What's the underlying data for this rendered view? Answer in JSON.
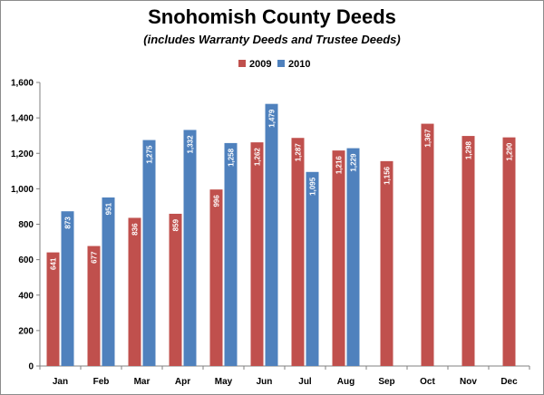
{
  "chart_data": {
    "type": "bar",
    "title": "Snohomish County Deeds",
    "subtitle": "(includes Warranty Deeds and Trustee Deeds)",
    "categories": [
      "Jan",
      "Feb",
      "Mar",
      "Apr",
      "May",
      "Jun",
      "Jul",
      "Aug",
      "Sep",
      "Oct",
      "Nov",
      "Dec"
    ],
    "series": [
      {
        "name": "2009",
        "color": "#c0504d",
        "values": [
          641,
          677,
          836,
          859,
          996,
          1262,
          1287,
          1216,
          1156,
          1367,
          1298,
          1290
        ],
        "labels": [
          "641",
          "677",
          "836",
          "859",
          "996",
          "1,262",
          "1,287",
          "1,216",
          "1,156",
          "1,367",
          "1,298",
          "1,290"
        ]
      },
      {
        "name": "2010",
        "color": "#4f81bd",
        "values": [
          873,
          951,
          1275,
          1332,
          1258,
          1479,
          1095,
          1229,
          null,
          null,
          null,
          null
        ],
        "labels": [
          "873",
          "951",
          "1,275",
          "1,332",
          "1,258",
          "1,479",
          "1,095",
          "1,229",
          "",
          "",
          "",
          ""
        ]
      }
    ],
    "ylim": [
      0,
      1600
    ],
    "yticks": [
      0,
      200,
      400,
      600,
      800,
      1000,
      1200,
      1400,
      1600
    ],
    "ytick_labels": [
      "0",
      "200",
      "400",
      "600",
      "800",
      "1,000",
      "1,200",
      "1,400",
      "1,600"
    ],
    "xlabel": "",
    "ylabel": "",
    "grid": false,
    "legend_position": "top-center"
  }
}
